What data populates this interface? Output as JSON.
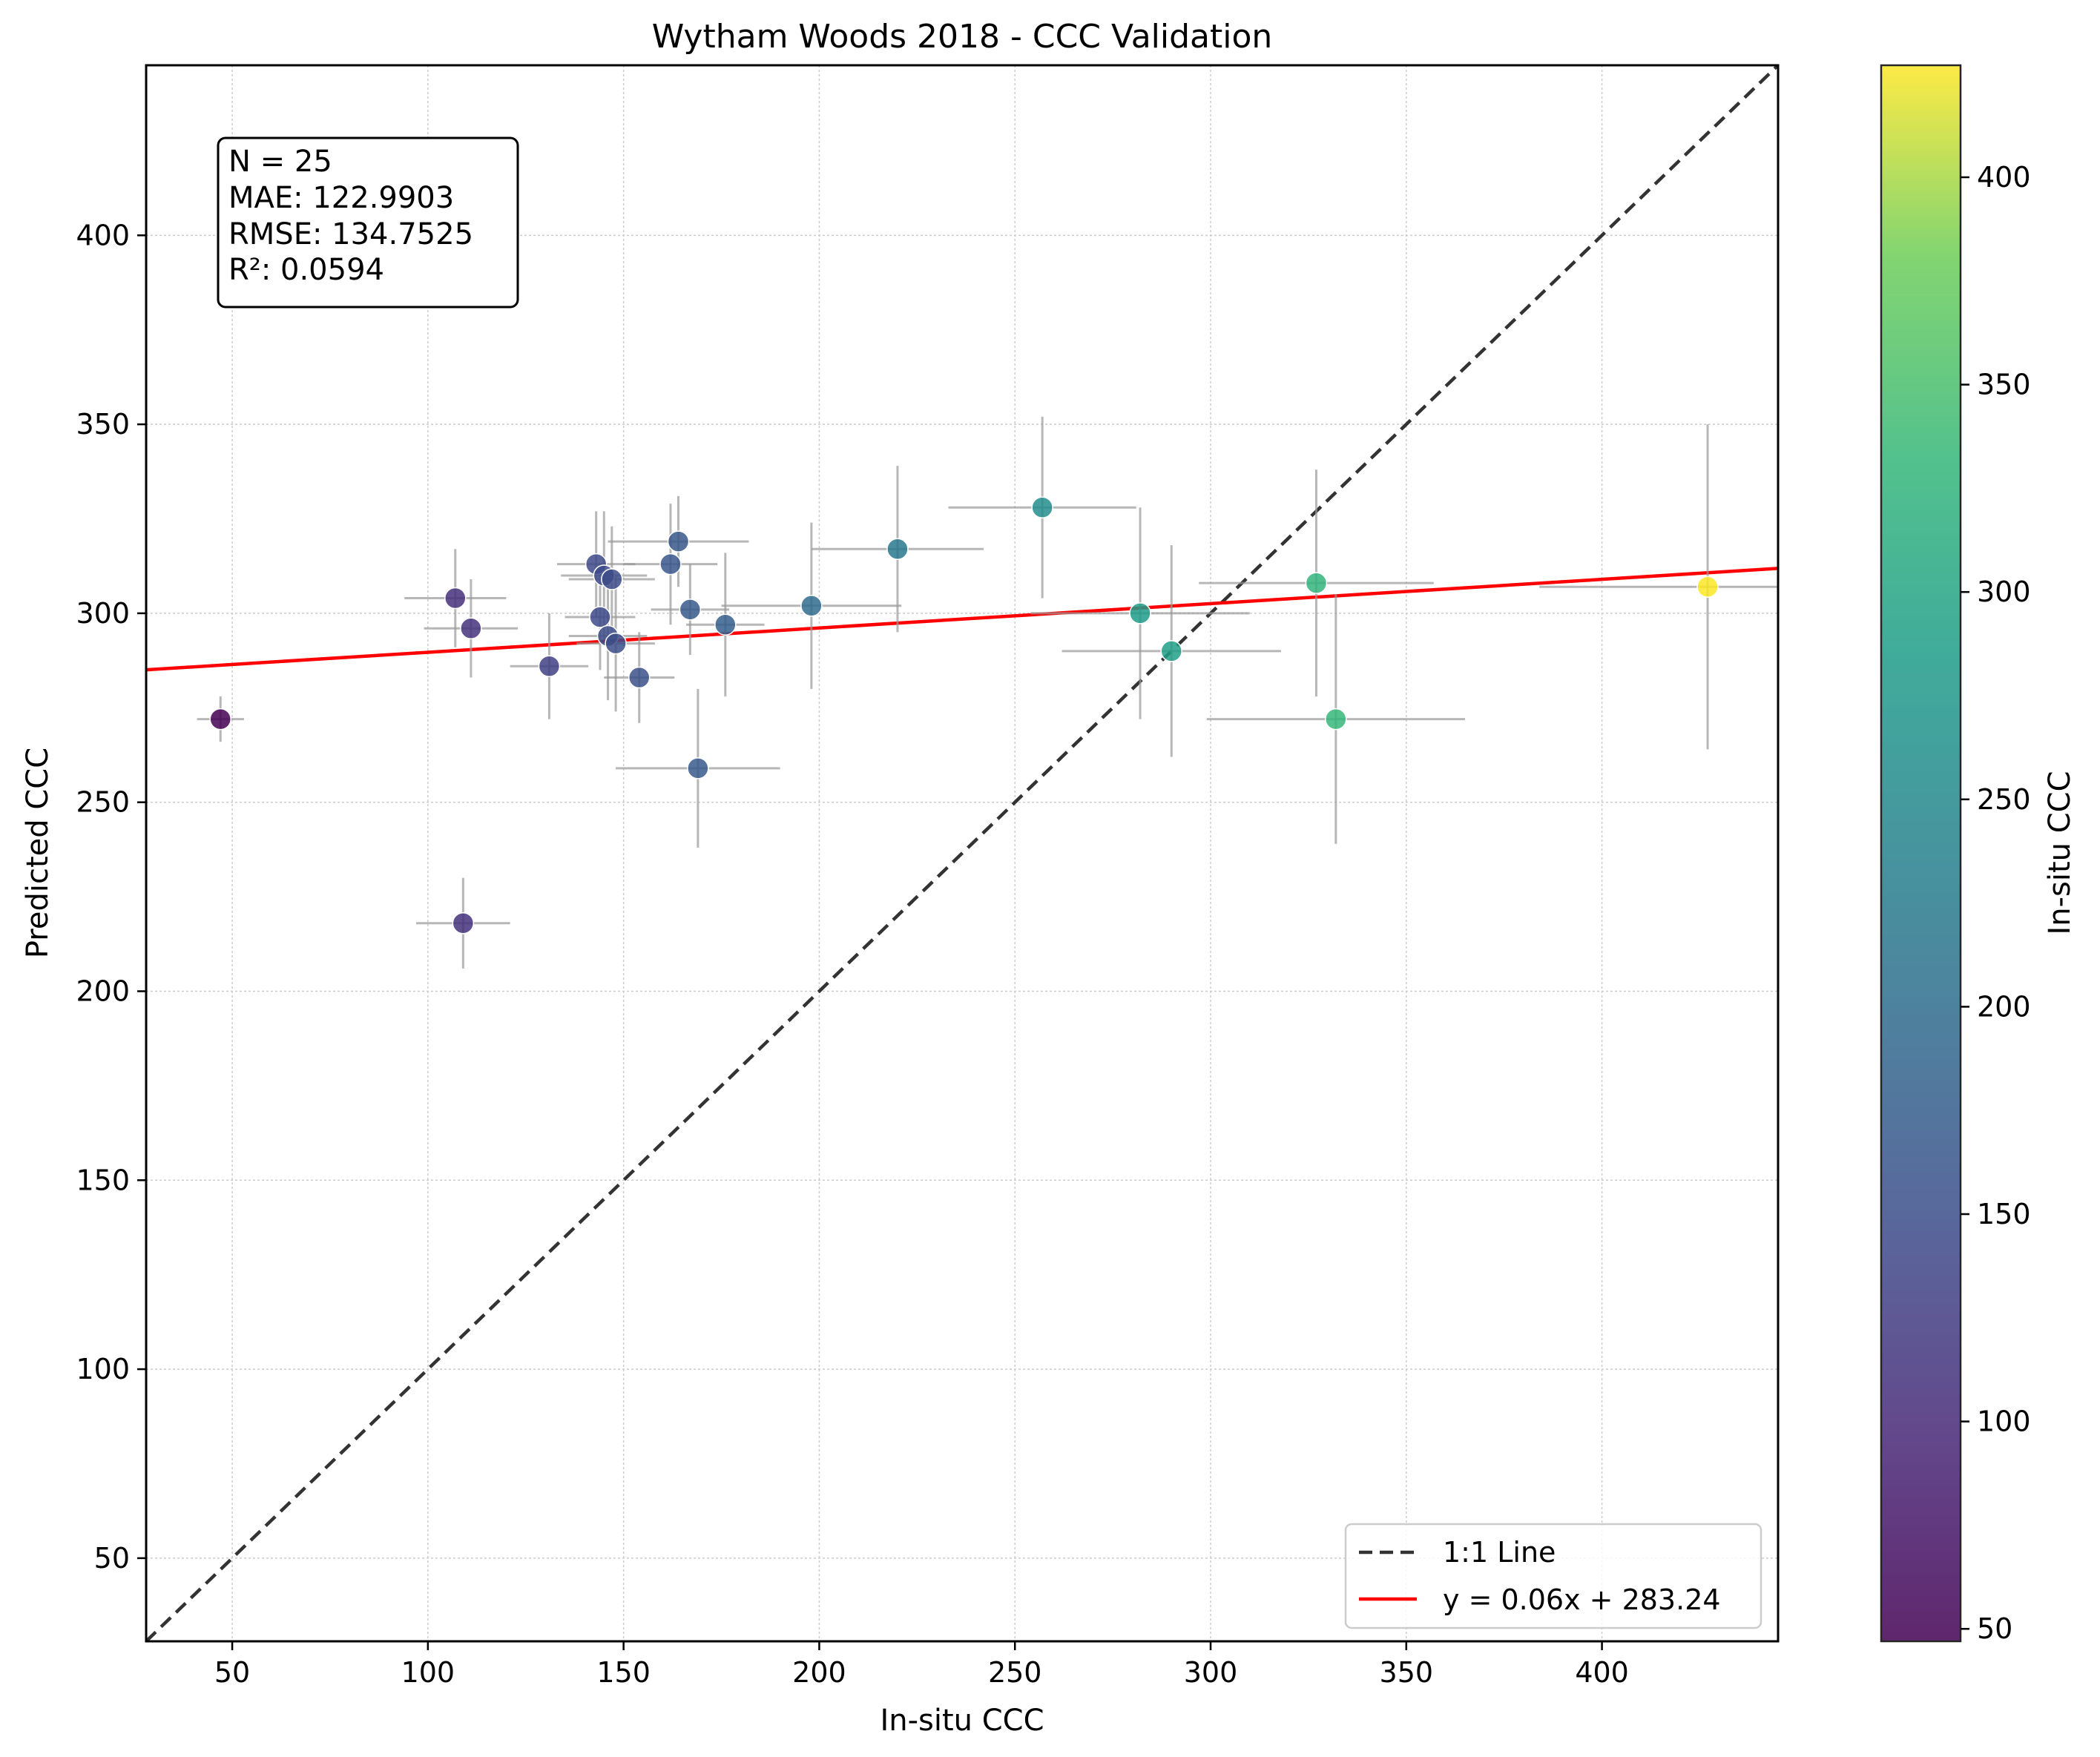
{
  "chart_data": {
    "type": "scatter",
    "title": "Wytham Woods 2018 - CCC Validation",
    "xlabel": "In-situ CCC",
    "ylabel": "Predicted CCC",
    "xlim": [
      28,
      445
    ],
    "ylim": [
      28,
      445
    ],
    "xticks": [
      50,
      100,
      150,
      200,
      250,
      300,
      350,
      400
    ],
    "yticks": [
      50,
      100,
      150,
      200,
      250,
      300,
      350,
      400
    ],
    "grid": true,
    "stats": {
      "lines": [
        "N = 25",
        "MAE: 122.9903",
        "RMSE: 134.7525",
        "R²: 0.0594"
      ],
      "placement": "top-left"
    },
    "legend": {
      "placement": "lower-right",
      "entries": [
        {
          "label": "1:1 Line",
          "style": "dashed",
          "color": "#333333"
        },
        {
          "label": "y = 0.06x + 283.24",
          "style": "solid",
          "color": "#ff0000"
        }
      ]
    },
    "one_to_one_line": {
      "label": "1:1 Line",
      "color": "#333333"
    },
    "fit_line": {
      "label": "y = 0.06x + 283.24",
      "slope": 0.06437,
      "intercept": 283.24,
      "color": "#ff0000"
    },
    "colorbar": {
      "label": "In-situ CCC",
      "colormap": "viridis",
      "range": [
        47,
        427
      ],
      "ticks": [
        50,
        100,
        150,
        200,
        250,
        300,
        350,
        400
      ]
    },
    "points": [
      {
        "x": 47,
        "y": 272,
        "xerr": 6,
        "yerr": 6
      },
      {
        "x": 107,
        "y": 304,
        "xerr": 13,
        "yerr": 13
      },
      {
        "x": 109,
        "y": 218,
        "xerr": 12,
        "yerr": 12
      },
      {
        "x": 111,
        "y": 296,
        "xerr": 12,
        "yerr": 13
      },
      {
        "x": 131,
        "y": 286,
        "xerr": 10,
        "yerr": 14
      },
      {
        "x": 143,
        "y": 313,
        "xerr": 10,
        "yerr": 14
      },
      {
        "x": 144,
        "y": 299,
        "xerr": 9,
        "yerr": 14
      },
      {
        "x": 145,
        "y": 310,
        "xerr": 11,
        "yerr": 17
      },
      {
        "x": 146,
        "y": 294,
        "xerr": 10,
        "yerr": 17
      },
      {
        "x": 147,
        "y": 309,
        "xerr": 11,
        "yerr": 14
      },
      {
        "x": 148,
        "y": 292,
        "xerr": 10,
        "yerr": 18
      },
      {
        "x": 154,
        "y": 283,
        "xerr": 9,
        "yerr": 12
      },
      {
        "x": 162,
        "y": 313,
        "xerr": 12,
        "yerr": 16
      },
      {
        "x": 164,
        "y": 319,
        "xerr": 18,
        "yerr": 12
      },
      {
        "x": 167,
        "y": 301,
        "xerr": 10,
        "yerr": 12
      },
      {
        "x": 169,
        "y": 259,
        "xerr": 21,
        "yerr": 21
      },
      {
        "x": 176,
        "y": 297,
        "xerr": 10,
        "yerr": 19
      },
      {
        "x": 198,
        "y": 302,
        "xerr": 23,
        "yerr": 22
      },
      {
        "x": 220,
        "y": 317,
        "xerr": 22,
        "yerr": 22
      },
      {
        "x": 257,
        "y": 328,
        "xerr": 24,
        "yerr": 24
      },
      {
        "x": 282,
        "y": 300,
        "xerr": 28,
        "yerr": 28
      },
      {
        "x": 290,
        "y": 290,
        "xerr": 28,
        "yerr": 28
      },
      {
        "x": 327,
        "y": 308,
        "xerr": 30,
        "yerr": 30
      },
      {
        "x": 332,
        "y": 272,
        "xerr": 33,
        "yerr": 33
      },
      {
        "x": 427,
        "y": 307,
        "xerr": 43,
        "yerr": 43
      }
    ]
  }
}
